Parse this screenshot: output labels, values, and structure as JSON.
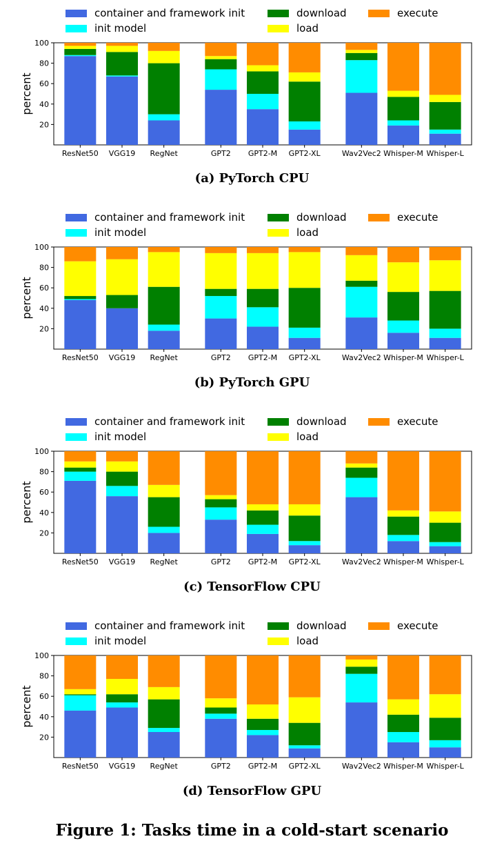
{
  "figure_caption": "Figure 1: Tasks time in a cold-start scenario",
  "colors": {
    "container and framework init": "#4169e1",
    "init model": "#00ffff",
    "download": "#008000",
    "load": "#ffff00",
    "execute": "#ff8c00"
  },
  "chart_data": [
    {
      "type": "bar",
      "stacked": true,
      "caption": "(a) PyTorch CPU",
      "ylabel": "percent",
      "ylim": [
        0,
        100
      ],
      "yticks": [
        20,
        40,
        60,
        80,
        100
      ],
      "legend_position": "top",
      "categories": [
        "ResNet50",
        "VGG19",
        "RegNet",
        "GPT2",
        "GPT2-M",
        "GPT2-XL",
        "Wav2Vec2",
        "Whisper-M",
        "Whisper-L"
      ],
      "series": [
        {
          "name": "container and framework init",
          "values": [
            87,
            67,
            24,
            54,
            35,
            15,
            51,
            19,
            11
          ]
        },
        {
          "name": "init model",
          "values": [
            1,
            1,
            6,
            20,
            15,
            8,
            32,
            5,
            4
          ]
        },
        {
          "name": "download",
          "values": [
            6,
            23,
            50,
            10,
            22,
            39,
            7,
            23,
            27
          ]
        },
        {
          "name": "load",
          "values": [
            3,
            6,
            12,
            3,
            6,
            9,
            3,
            6,
            7
          ]
        },
        {
          "name": "execute",
          "values": [
            3,
            3,
            8,
            13,
            22,
            29,
            7,
            47,
            51
          ]
        }
      ]
    },
    {
      "type": "bar",
      "stacked": true,
      "caption": "(b) PyTorch GPU",
      "ylabel": "percent",
      "ylim": [
        0,
        100
      ],
      "yticks": [
        20,
        40,
        60,
        80,
        100
      ],
      "legend_position": "top",
      "categories": [
        "ResNet50",
        "VGG19",
        "RegNet",
        "GPT2",
        "GPT2-M",
        "GPT2-XL",
        "Wav2Vec2",
        "Whisper-M",
        "Whisper-L"
      ],
      "series": [
        {
          "name": "container and framework init",
          "values": [
            48,
            40,
            18,
            30,
            22,
            11,
            31,
            16,
            11
          ]
        },
        {
          "name": "init model",
          "values": [
            1,
            0,
            6,
            22,
            19,
            10,
            30,
            12,
            9
          ]
        },
        {
          "name": "download",
          "values": [
            3,
            13,
            37,
            7,
            18,
            39,
            6,
            28,
            37
          ]
        },
        {
          "name": "load",
          "values": [
            34,
            35,
            34,
            35,
            35,
            35,
            25,
            29,
            30
          ]
        },
        {
          "name": "execute",
          "values": [
            14,
            12,
            5,
            6,
            6,
            5,
            8,
            15,
            13
          ]
        }
      ]
    },
    {
      "type": "bar",
      "stacked": true,
      "caption": "(c) TensorFlow CPU",
      "ylabel": "percent",
      "ylim": [
        0,
        100
      ],
      "yticks": [
        20,
        40,
        60,
        80,
        100
      ],
      "legend_position": "top",
      "categories": [
        "ResNet50",
        "VGG19",
        "RegNet",
        "GPT2",
        "GPT2-M",
        "GPT2-XL",
        "Wav2Vec2",
        "Whisper-M",
        "Whisper-L"
      ],
      "series": [
        {
          "name": "container and framework init",
          "values": [
            71,
            56,
            20,
            33,
            19,
            8,
            55,
            12,
            7
          ]
        },
        {
          "name": "init model",
          "values": [
            9,
            10,
            6,
            12,
            9,
            4,
            19,
            6,
            4
          ]
        },
        {
          "name": "download",
          "values": [
            4,
            14,
            29,
            8,
            14,
            25,
            10,
            18,
            19
          ]
        },
        {
          "name": "load",
          "values": [
            6,
            10,
            12,
            4,
            6,
            11,
            4,
            6,
            11
          ]
        },
        {
          "name": "execute",
          "values": [
            10,
            10,
            33,
            43,
            52,
            52,
            12,
            58,
            59
          ]
        }
      ]
    },
    {
      "type": "bar",
      "stacked": true,
      "caption": "(d) TensorFlow GPU",
      "ylabel": "percent",
      "ylim": [
        0,
        100
      ],
      "yticks": [
        20,
        40,
        60,
        80,
        100
      ],
      "legend_position": "top",
      "categories": [
        "ResNet50",
        "VGG19",
        "RegNet",
        "GPT2",
        "GPT2-M",
        "GPT2-XL",
        "Wav2Vec2",
        "Whisper-M",
        "Whisper-L"
      ],
      "series": [
        {
          "name": "container and framework init",
          "values": [
            46,
            49,
            25,
            38,
            22,
            9,
            54,
            15,
            10
          ]
        },
        {
          "name": "init model",
          "values": [
            15,
            5,
            4,
            5,
            5,
            3,
            28,
            10,
            7
          ]
        },
        {
          "name": "download",
          "values": [
            1,
            8,
            28,
            6,
            11,
            22,
            7,
            17,
            22
          ]
        },
        {
          "name": "load",
          "values": [
            5,
            15,
            12,
            9,
            14,
            25,
            7,
            15,
            23
          ]
        },
        {
          "name": "execute",
          "values": [
            33,
            23,
            31,
            42,
            48,
            41,
            4,
            43,
            38
          ]
        }
      ]
    }
  ]
}
